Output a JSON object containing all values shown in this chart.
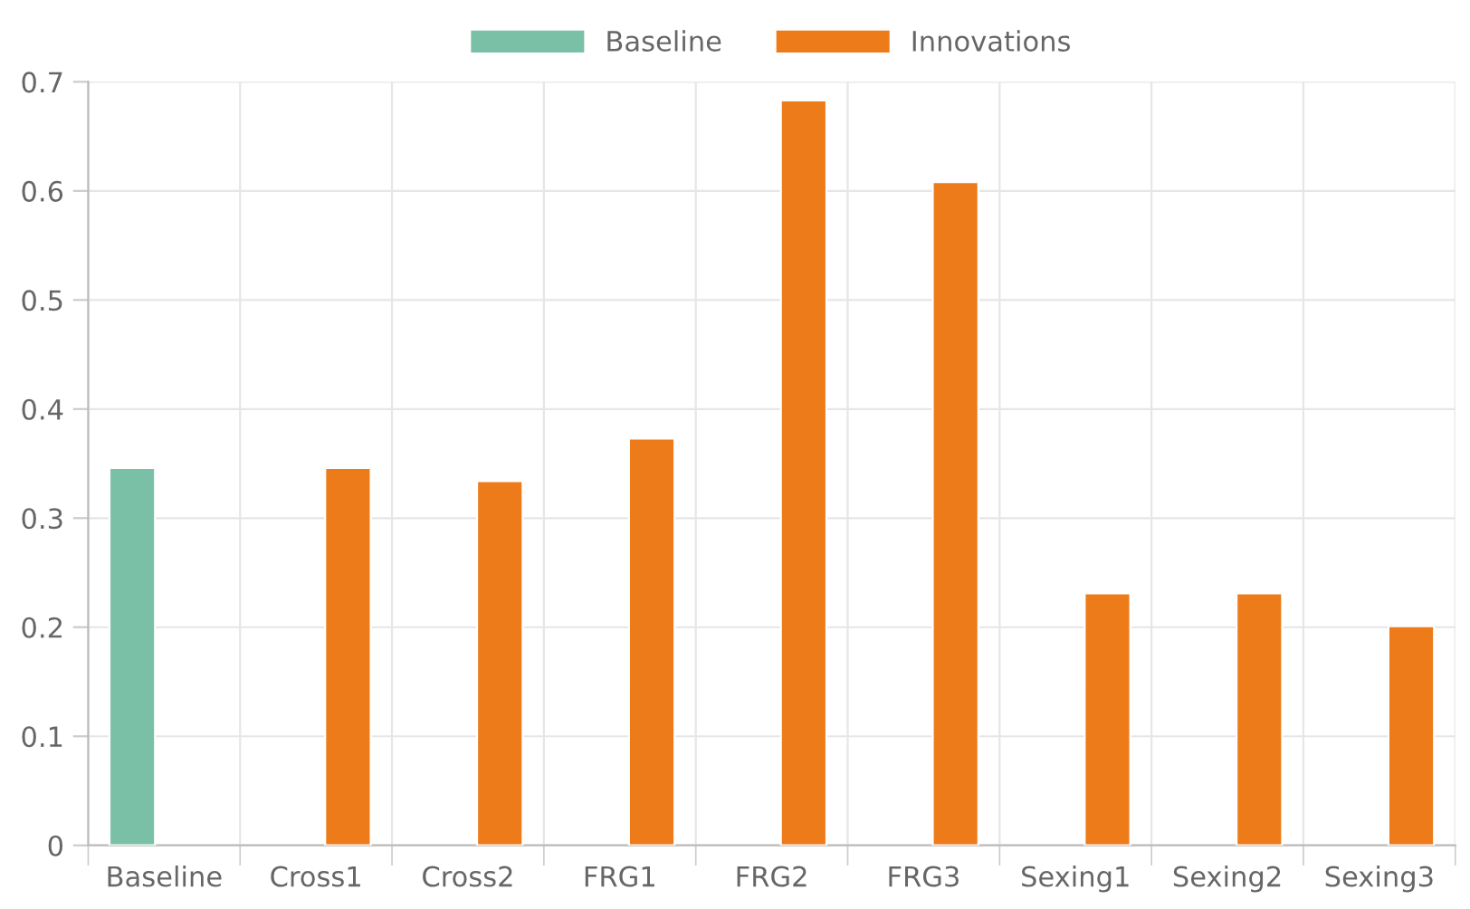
{
  "chart_data": {
    "type": "bar",
    "categories": [
      "Baseline",
      "Cross1",
      "Cross2",
      "FRG1",
      "FRG2",
      "FRG3",
      "Sexing1",
      "Sexing2",
      "Sexing3"
    ],
    "series": [
      {
        "name": "Baseline",
        "color": "#7ac0a7",
        "values": [
          0.346,
          null,
          null,
          null,
          null,
          null,
          null,
          null,
          null
        ]
      },
      {
        "name": "Innovations",
        "color": "#ee7b19",
        "values": [
          null,
          0.346,
          0.334,
          0.373,
          0.683,
          0.608,
          0.231,
          0.231,
          0.201
        ]
      }
    ],
    "ylim": [
      0,
      0.7
    ],
    "yticks": [
      0,
      0.1,
      0.2,
      0.3,
      0.4,
      0.5,
      0.6,
      0.7
    ],
    "grid": true,
    "legend": "top"
  }
}
